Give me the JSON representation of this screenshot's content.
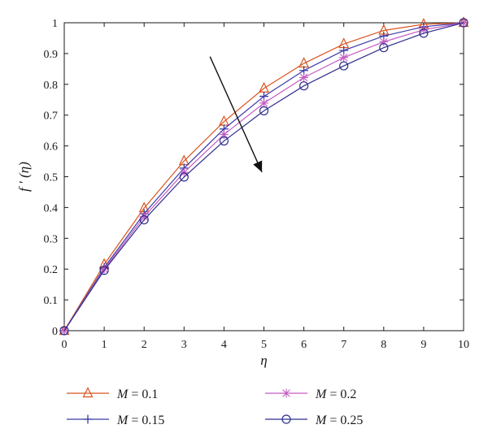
{
  "chart_data": {
    "type": "line",
    "xlabel": "η",
    "ylabel": "f ′ (η)",
    "xlim": [
      0,
      10
    ],
    "ylim": [
      0,
      1
    ],
    "x_ticks": [
      "0",
      "1",
      "2",
      "3",
      "4",
      "5",
      "6",
      "7",
      "8",
      "9",
      "10"
    ],
    "y_ticks": [
      "0",
      "0.1",
      "0.2",
      "0.3",
      "0.4",
      "0.5",
      "0.6",
      "0.7",
      "0.8",
      "0.9",
      "1"
    ],
    "x": [
      0,
      1,
      2,
      3,
      4,
      5,
      6,
      7,
      8,
      9,
      10
    ],
    "grid": false,
    "legend_position": "bottom",
    "annotation": "arrow pointing in direction of increasing M",
    "series": [
      {
        "name": "M = 0.1",
        "color": "#d9541e",
        "marker": "triangle",
        "values": [
          0,
          0.215,
          0.398,
          0.551,
          0.679,
          0.787,
          0.868,
          0.931,
          0.975,
          0.995,
          1.0
        ]
      },
      {
        "name": "M = 0.15",
        "color": "#3a3aa8",
        "marker": "plus",
        "values": [
          0,
          0.205,
          0.38,
          0.528,
          0.655,
          0.761,
          0.845,
          0.91,
          0.957,
          0.987,
          1.0
        ]
      },
      {
        "name": "M = 0.2",
        "color": "#c45bc2",
        "marker": "asterisk",
        "values": [
          0,
          0.2,
          0.37,
          0.514,
          0.637,
          0.739,
          0.822,
          0.887,
          0.938,
          0.977,
          1.0
        ]
      },
      {
        "name": "M = 0.25",
        "color": "#2e2e8c",
        "marker": "circle",
        "values": [
          0,
          0.196,
          0.36,
          0.499,
          0.616,
          0.714,
          0.795,
          0.86,
          0.919,
          0.966,
          1.0
        ]
      }
    ],
    "legend": {
      "col1": [
        "M = 0.1",
        "M = 0.15"
      ],
      "col2": [
        "M = 0.2",
        "M = 0.25"
      ]
    }
  }
}
